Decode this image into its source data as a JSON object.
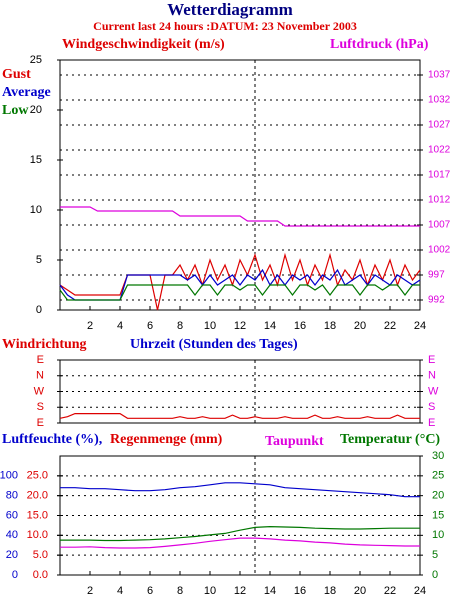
{
  "chart_data": [
    {
      "type": "line",
      "title": "Wetterdiagramm",
      "subtitle": "Current last 24 hours :DATUM: 23 November 2003",
      "ylabel": "Windgeschwindigkeit (m/s)",
      "xlabel": "Uhrzeit (Stunden des Tages)",
      "xlim": [
        0,
        24
      ],
      "xticks": [
        2,
        4,
        6,
        8,
        10,
        12,
        14,
        16,
        18,
        20,
        22,
        24
      ],
      "ylim": [
        0,
        25
      ],
      "yticks": [
        0,
        5,
        10,
        15,
        20,
        25
      ],
      "y_color": "#000000",
      "y2lim": [
        990,
        1040
      ],
      "y2ticks": [
        992,
        997,
        1002,
        1007,
        1012,
        1017,
        1022,
        1027,
        1032,
        1037
      ],
      "y2_color": "#dd00dd",
      "grid": "y2",
      "vline": 13,
      "x": [
        0,
        0.5,
        1,
        1.5,
        2,
        2.5,
        3,
        3.5,
        4,
        4.5,
        5,
        5.5,
        6,
        6.5,
        7,
        7.5,
        8,
        8.5,
        9,
        9.5,
        10,
        10.5,
        11,
        11.5,
        12,
        12.5,
        13,
        13.5,
        14,
        14.5,
        15,
        15.5,
        16,
        16.5,
        17,
        17.5,
        18,
        18.5,
        19,
        19.5,
        20,
        20.5,
        21,
        21.5,
        22,
        22.5,
        23,
        23.5,
        24
      ],
      "series": [
        {
          "name": "Gust",
          "color": "#dd0000",
          "values": [
            2.5,
            2.0,
            1.5,
            1.5,
            1.5,
            1.5,
            1.5,
            1.5,
            1.5,
            3.5,
            3.5,
            3.5,
            3.5,
            0,
            3.5,
            3.5,
            4.5,
            3.0,
            4.5,
            2.5,
            5.0,
            3.0,
            4.5,
            2.5,
            5.0,
            3.5,
            5.5,
            3.0,
            4.5,
            2.5,
            5.5,
            3.0,
            5.0,
            2.5,
            4.5,
            3.0,
            5.5,
            2.5,
            4.0,
            3.0,
            5.0,
            2.5,
            4.5,
            3.0,
            5.0,
            2.5,
            4.5,
            3.0,
            4.0
          ]
        },
        {
          "name": "Average",
          "color": "#0000cc",
          "values": [
            2.5,
            1.5,
            1.0,
            1.0,
            1.0,
            1.0,
            1.0,
            1.0,
            1.0,
            3.5,
            3.5,
            3.5,
            3.5,
            3.5,
            3.5,
            3.5,
            3.5,
            3.0,
            3.5,
            2.5,
            3.5,
            2.5,
            3.0,
            3.5,
            2.5,
            3.5,
            3.0,
            4.0,
            2.5,
            3.5,
            2.5,
            3.5,
            3.0,
            3.5,
            2.5,
            3.5,
            3.0,
            4.0,
            2.5,
            3.0,
            3.5,
            2.5,
            3.5,
            3.0,
            2.5,
            3.5,
            3.0,
            2.5,
            3.0
          ]
        },
        {
          "name": "Low",
          "color": "#007700",
          "values": [
            2.0,
            1.0,
            1.0,
            1.0,
            1.0,
            1.0,
            1.0,
            1.0,
            1.0,
            2.5,
            2.5,
            2.5,
            2.5,
            2.5,
            2.5,
            2.5,
            2.5,
            2.5,
            1.5,
            2.5,
            2.5,
            1.5,
            2.5,
            2.5,
            2.0,
            2.5,
            2.5,
            1.5,
            2.5,
            2.5,
            2.5,
            1.5,
            2.5,
            2.5,
            2.0,
            2.5,
            1.5,
            2.5,
            2.5,
            2.5,
            1.5,
            2.5,
            2.5,
            2.0,
            2.5,
            2.5,
            1.5,
            2.5,
            2.5
          ]
        },
        {
          "name": "Luftdruck (hPa)",
          "color": "#dd00dd",
          "axis": "y2",
          "values": [
            1010.6,
            1010.6,
            1010.6,
            1010.6,
            1010.6,
            1009.8,
            1009.8,
            1009.8,
            1009.8,
            1009.8,
            1009.8,
            1009.8,
            1009.8,
            1009.8,
            1009.8,
            1009.8,
            1008.8,
            1008.8,
            1008.8,
            1008.8,
            1008.8,
            1008.8,
            1008.8,
            1008.8,
            1008.8,
            1007.8,
            1007.8,
            1007.8,
            1007.8,
            1007.8,
            1006.8,
            1006.8,
            1006.8,
            1006.8,
            1006.8,
            1006.8,
            1006.8,
            1006.8,
            1006.8,
            1006.8,
            1006.8,
            1006.8,
            1006.8,
            1006.8,
            1006.8,
            1006.8,
            1006.8,
            1006.8,
            1006.8
          ]
        }
      ]
    },
    {
      "type": "line",
      "xlim": [
        0,
        24
      ],
      "ylim": [
        0,
        4
      ],
      "yticks": [
        {
          "value": 4,
          "label": "E"
        },
        {
          "value": 3,
          "label": "N"
        },
        {
          "value": 2,
          "label": "W"
        },
        {
          "value": 1,
          "label": "S"
        },
        {
          "value": 0,
          "label": "E"
        }
      ],
      "y_color": "#dd0000",
      "right_color": "#dd00dd",
      "grid": "y",
      "vline": 13,
      "x": [
        0,
        0.5,
        1,
        1.5,
        2,
        2.5,
        3,
        3.5,
        4,
        4.5,
        5,
        5.5,
        6,
        6.5,
        7,
        7.5,
        8,
        8.5,
        9,
        9.5,
        10,
        10.5,
        11,
        11.5,
        12,
        12.5,
        13,
        13.5,
        14,
        14.5,
        15,
        15.5,
        16,
        16.5,
        17,
        17.5,
        18,
        18.5,
        19,
        19.5,
        20,
        20.5,
        21,
        21.5,
        22,
        22.5,
        23,
        23.5,
        24
      ],
      "series": [
        {
          "name": "Windrichtung",
          "color": "#dd0000",
          "values": [
            0.3,
            0.4,
            0.6,
            0.6,
            0.6,
            0.6,
            0.6,
            0.6,
            0.6,
            0.3,
            0.3,
            0.3,
            0.3,
            0.3,
            0.3,
            0.3,
            0.4,
            0.3,
            0.3,
            0.4,
            0.3,
            0.3,
            0.3,
            0.5,
            0.3,
            0.3,
            0.4,
            0.3,
            0.3,
            0.3,
            0.4,
            0.3,
            0.3,
            0.3,
            0.5,
            0.3,
            0.3,
            0.4,
            0.3,
            0.3,
            0.3,
            0.4,
            0.3,
            0.3,
            0.3,
            0.5,
            0.3,
            0.3,
            0.3
          ]
        }
      ]
    },
    {
      "type": "line",
      "xlim": [
        0,
        24
      ],
      "xticks": [
        2,
        4,
        6,
        8,
        10,
        12,
        14,
        16,
        18,
        20,
        22,
        24
      ],
      "ylim": [
        0,
        120
      ],
      "yticks": [
        0,
        20,
        40,
        60,
        80,
        100
      ],
      "y_color": "#0000cc",
      "y3label": "Regenmenge (mm)",
      "y3lim": [
        0,
        30
      ],
      "y3ticks": [
        {
          "value": 0,
          "label": "0.0"
        },
        {
          "value": 5,
          "label": "5.0"
        },
        {
          "value": 10,
          "label": "10.0"
        },
        {
          "value": 15,
          "label": "15.0"
        },
        {
          "value": 20,
          "label": "20.0"
        },
        {
          "value": 25,
          "label": "25.0"
        }
      ],
      "y3_color": "#dd0000",
      "y2lim": [
        0,
        30
      ],
      "y2ticks": [
        0,
        5,
        10,
        15,
        20,
        25,
        30
      ],
      "y2_color": "#007700",
      "grid": "y2",
      "vline": 13,
      "x": [
        0,
        1,
        2,
        3,
        4,
        5,
        6,
        7,
        8,
        9,
        10,
        11,
        12,
        13,
        14,
        15,
        16,
        17,
        18,
        19,
        20,
        21,
        22,
        23,
        24
      ],
      "series": [
        {
          "name": "Luftfeuchte (%),",
          "color": "#0000cc",
          "values": [
            88,
            88,
            87,
            87,
            86,
            85,
            85,
            86,
            88,
            89,
            91,
            93,
            93,
            92,
            91,
            88,
            87,
            86,
            85,
            84,
            83,
            82,
            81,
            79,
            79
          ]
        },
        {
          "name": "Taupunkt",
          "color": "#dd00dd",
          "axis": "y2",
          "values": [
            7.0,
            7.0,
            7.1,
            6.9,
            6.8,
            6.8,
            6.9,
            7.2,
            7.6,
            8.0,
            8.5,
            8.9,
            9.3,
            9.3,
            9.1,
            8.8,
            8.6,
            8.3,
            8.1,
            7.8,
            7.6,
            7.5,
            7.4,
            7.3,
            7.3
          ]
        },
        {
          "name": "Temperatur (°C)",
          "color": "#007700",
          "axis": "y2",
          "values": [
            8.8,
            8.8,
            8.8,
            8.7,
            8.7,
            8.8,
            8.9,
            9.1,
            9.4,
            9.7,
            10.1,
            10.5,
            11.3,
            12.0,
            12.2,
            12.1,
            12.0,
            11.8,
            11.7,
            11.6,
            11.6,
            11.7,
            11.8,
            11.8,
            11.8
          ]
        }
      ]
    }
  ]
}
